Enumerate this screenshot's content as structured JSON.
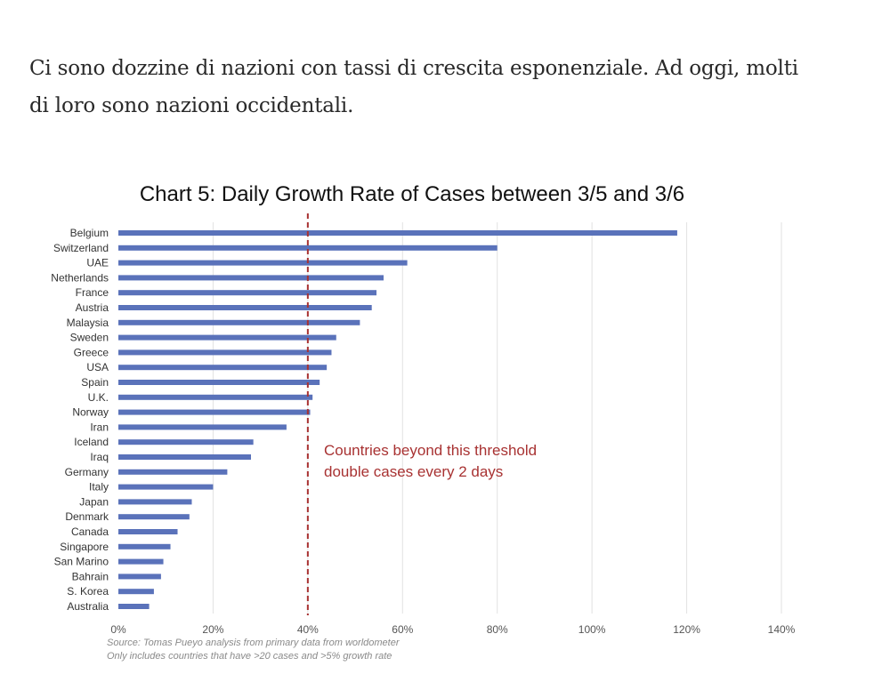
{
  "intro": {
    "line1": "Ci sono dozzine di nazioni con tassi di crescita esponenziale. Ad oggi, molti",
    "line2": "di loro sono nazioni occidentali."
  },
  "colors": {
    "bar": "#5a72ba",
    "threshold": "#a83232",
    "grid": "#e2e2e2"
  },
  "chart_data": {
    "type": "bar",
    "orientation": "horizontal",
    "title": "Chart 5: Daily Growth Rate of Cases between 3/5 and 3/6",
    "categories": [
      "Belgium",
      "Switzerland",
      "UAE",
      "Netherlands",
      "France",
      "Austria",
      "Malaysia",
      "Sweden",
      "Greece",
      "USA",
      "Spain",
      "U.K.",
      "Norway",
      "Iran",
      "Iceland",
      "Iraq",
      "Germany",
      "Italy",
      "Japan",
      "Denmark",
      "Canada",
      "Singapore",
      "San Marino",
      "Bahrain",
      "S. Korea",
      "Australia"
    ],
    "values": [
      118,
      80,
      61,
      56,
      54.5,
      53.5,
      51,
      46,
      45,
      44,
      42.5,
      41,
      40.5,
      35.5,
      28.5,
      28,
      23,
      20,
      15.5,
      15,
      12.5,
      11,
      9.5,
      9,
      7.5,
      6.5
    ],
    "unit": "%",
    "xlim": [
      0,
      140
    ],
    "x_ticks": [
      0,
      20,
      40,
      60,
      80,
      100,
      120,
      140
    ],
    "x_tick_labels": [
      "0%",
      "20%",
      "40%",
      "60%",
      "80%",
      "100%",
      "120%",
      "140%"
    ],
    "grid": "vertical",
    "threshold": {
      "value": 40,
      "line1": "Countries beyond this threshold",
      "line2": "double cases every 2 days"
    },
    "source_line1": "Source: Tomas Pueyo analysis from primary data from worldometer",
    "source_line2": "Only includes countries that have >20 cases and >5% growth rate"
  }
}
